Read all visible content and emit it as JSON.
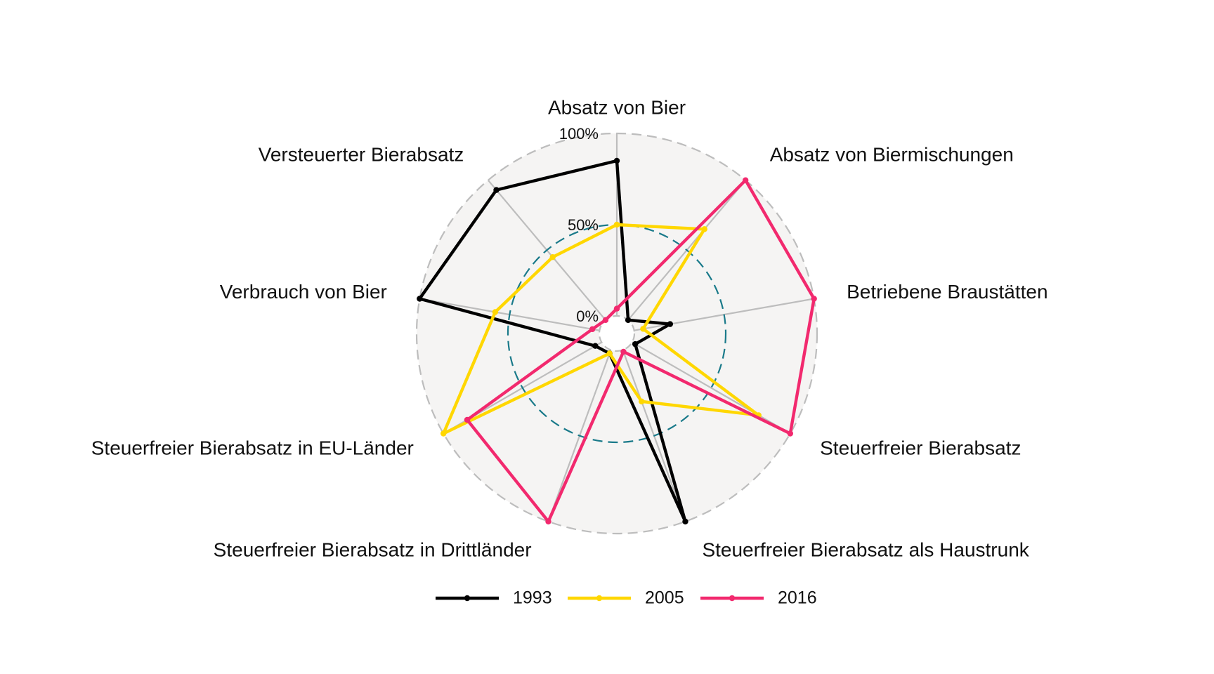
{
  "chart_data": {
    "type": "radar",
    "axes": [
      "Absatz von Bier",
      "Absatz von Biermischungen",
      "Betriebene Braustätten",
      "Steuerfreier Bierabsatz",
      "Steuerfreier Bierabsatz als Haustrunk",
      "Steuerfreier Bierabsatz in Drittländer",
      "Steuerfreier Bierabsatz in EU-Länder",
      "Verbrauch von Bier",
      "Versteuerter Bierabsatz"
    ],
    "radial_ticks": [
      "0%",
      "50%",
      "100%"
    ],
    "rlim": [
      0,
      100
    ],
    "series": [
      {
        "name": "1993",
        "color": "#000000",
        "values": [
          85,
          0,
          20,
          2,
          100,
          2,
          4,
          100,
          93
        ]
      },
      {
        "name": "2005",
        "color": "#FFD700",
        "values": [
          50,
          65,
          5,
          80,
          30,
          2,
          100,
          58,
          45
        ]
      },
      {
        "name": "2016",
        "color": "#F2296E",
        "values": [
          4,
          100,
          100,
          100,
          1,
          100,
          85,
          4,
          0
        ]
      }
    ],
    "gridline_50_color": "#1A7A8A",
    "outer_ring_color": "#BDBDBD",
    "panel_fill": "#F5F4F3",
    "legend_position": "bottom"
  }
}
